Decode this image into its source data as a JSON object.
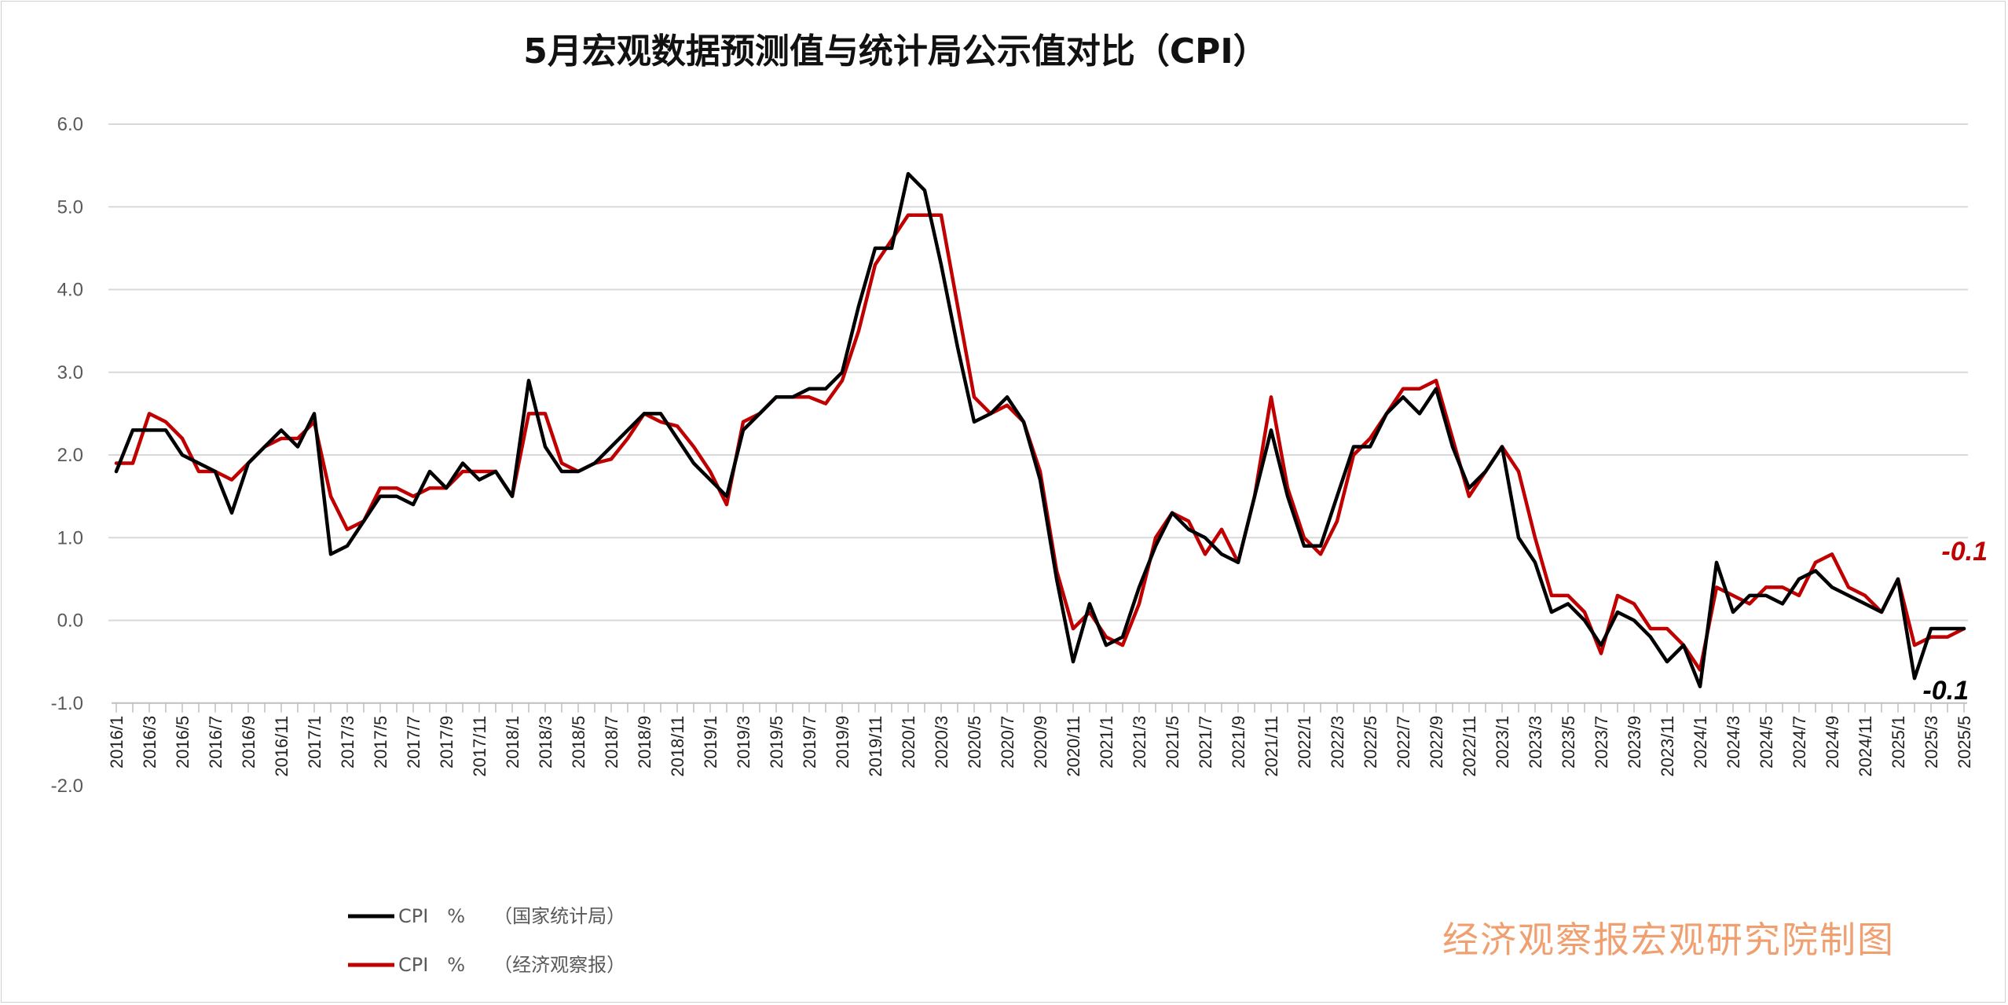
{
  "chart_data": {
    "type": "line",
    "title": "5月宏观数据预测值与统计局公示值对比（CPI）",
    "x": [
      "2016/1",
      "2016/2",
      "2016/3",
      "2016/4",
      "2016/5",
      "2016/6",
      "2016/7",
      "2016/8",
      "2016/9",
      "2016/10",
      "2016/11",
      "2016/12",
      "2017/1",
      "2017/2",
      "2017/3",
      "2017/4",
      "2017/5",
      "2017/6",
      "2017/7",
      "2017/8",
      "2017/9",
      "2017/10",
      "2017/11",
      "2017/12",
      "2018/1",
      "2018/2",
      "2018/3",
      "2018/4",
      "2018/5",
      "2018/6",
      "2018/7",
      "2018/8",
      "2018/9",
      "2018/10",
      "2018/11",
      "2018/12",
      "2019/1",
      "2019/2",
      "2019/3",
      "2019/4",
      "2019/5",
      "2019/6",
      "2019/7",
      "2019/8",
      "2019/9",
      "2019/10",
      "2019/11",
      "2019/12",
      "2020/1",
      "2020/2",
      "2020/3",
      "2020/4",
      "2020/5",
      "2020/6",
      "2020/7",
      "2020/8",
      "2020/9",
      "2020/10",
      "2020/11",
      "2020/12",
      "2021/1",
      "2021/2",
      "2021/3",
      "2021/4",
      "2021/5",
      "2021/6",
      "2021/7",
      "2021/8",
      "2021/9",
      "2021/10",
      "2021/11",
      "2021/12",
      "2022/1",
      "2022/2",
      "2022/3",
      "2022/4",
      "2022/5",
      "2022/6",
      "2022/7",
      "2022/8",
      "2022/9",
      "2022/10",
      "2022/11",
      "2022/12",
      "2023/1",
      "2023/2",
      "2023/3",
      "2023/4",
      "2023/5",
      "2023/6",
      "2023/7",
      "2023/8",
      "2023/9",
      "2023/10",
      "2023/11",
      "2023/12",
      "2024/1",
      "2024/2",
      "2024/3",
      "2024/4",
      "2024/5",
      "2024/6",
      "2024/7",
      "2024/8",
      "2024/9",
      "2024/10",
      "2024/11",
      "2024/12",
      "2025/1",
      "2025/2",
      "2025/3",
      "2025/4",
      "2025/5"
    ],
    "xticks_shown": [
      "2016/1",
      "2016/3",
      "2016/5",
      "2016/7",
      "2016/9",
      "2016/11",
      "2017/1",
      "2017/3",
      "2017/5",
      "2017/7",
      "2017/9",
      "2017/11",
      "2018/1",
      "2018/3",
      "2018/5",
      "2018/7",
      "2018/9",
      "2018/11",
      "2019/1",
      "2019/3",
      "2019/5",
      "2019/7",
      "2019/9",
      "2019/11",
      "2020/1",
      "2020/3",
      "2020/5",
      "2020/7",
      "2020/9",
      "2020/11",
      "2021/1",
      "2021/3",
      "2021/5",
      "2021/7",
      "2021/9",
      "2021/11",
      "2022/1",
      "2022/3",
      "2022/5",
      "2022/7",
      "2022/9",
      "2022/11",
      "2023/1",
      "2023/3",
      "2023/5",
      "2023/7",
      "2023/9",
      "2023/11",
      "2024/1",
      "2024/3",
      "2024/5",
      "2024/7",
      "2024/9",
      "2024/11",
      "2025/1",
      "2025/3",
      "2025/5"
    ],
    "series": [
      {
        "name": "CPI　%　　（国家统计局）",
        "color": "#000000",
        "values": [
          1.8,
          2.3,
          2.3,
          2.3,
          2.0,
          1.9,
          1.8,
          1.3,
          1.9,
          2.1,
          2.3,
          2.1,
          2.5,
          0.8,
          0.9,
          1.2,
          1.5,
          1.5,
          1.4,
          1.8,
          1.6,
          1.9,
          1.7,
          1.8,
          1.5,
          2.9,
          2.1,
          1.8,
          1.8,
          1.9,
          2.1,
          2.3,
          2.5,
          2.5,
          2.2,
          1.9,
          1.7,
          1.5,
          2.3,
          2.5,
          2.7,
          2.7,
          2.8,
          2.8,
          3.0,
          3.8,
          4.5,
          4.5,
          5.4,
          5.2,
          4.3,
          3.3,
          2.4,
          2.5,
          2.7,
          2.4,
          1.7,
          0.5,
          -0.5,
          0.2,
          -0.3,
          -0.2,
          0.4,
          0.9,
          1.3,
          1.1,
          1.0,
          0.8,
          0.7,
          1.5,
          2.3,
          1.5,
          0.9,
          0.9,
          1.5,
          2.1,
          2.1,
          2.5,
          2.7,
          2.5,
          2.8,
          2.1,
          1.6,
          1.8,
          2.1,
          1.0,
          0.7,
          0.1,
          0.2,
          0.0,
          -0.3,
          0.1,
          0.0,
          -0.2,
          -0.5,
          -0.3,
          -0.8,
          0.7,
          0.1,
          0.3,
          0.3,
          0.2,
          0.5,
          0.6,
          0.4,
          0.3,
          0.2,
          0.1,
          0.5,
          -0.7,
          -0.1,
          -0.1,
          -0.1
        ]
      },
      {
        "name": "CPI　%　　（经济观察报）",
        "color": "#c00000",
        "values": [
          1.9,
          1.9,
          2.5,
          2.4,
          2.2,
          1.8,
          1.8,
          1.7,
          1.9,
          2.1,
          2.2,
          2.2,
          2.4,
          1.5,
          1.1,
          1.2,
          1.6,
          1.6,
          1.5,
          1.6,
          1.6,
          1.8,
          1.8,
          1.8,
          1.5,
          2.5,
          2.5,
          1.9,
          1.8,
          1.9,
          1.95,
          2.2,
          2.5,
          2.4,
          2.35,
          2.1,
          1.8,
          1.4,
          2.4,
          2.5,
          2.7,
          2.7,
          2.7,
          2.62,
          2.9,
          3.5,
          4.3,
          4.6,
          4.9,
          4.9,
          4.9,
          3.8,
          2.7,
          2.5,
          2.6,
          2.4,
          1.8,
          0.6,
          -0.1,
          0.1,
          -0.2,
          -0.3,
          0.2,
          1.0,
          1.3,
          1.2,
          0.8,
          1.1,
          0.7,
          1.5,
          2.7,
          1.6,
          1.0,
          0.8,
          1.2,
          2.0,
          2.2,
          2.5,
          2.8,
          2.8,
          2.9,
          2.2,
          1.5,
          1.8,
          2.1,
          1.8,
          1.0,
          0.3,
          0.3,
          0.1,
          -0.4,
          0.3,
          0.2,
          -0.1,
          -0.1,
          -0.3,
          -0.6,
          0.4,
          0.3,
          0.2,
          0.4,
          0.4,
          0.3,
          0.7,
          0.8,
          0.4,
          0.3,
          0.1,
          0.5,
          -0.3,
          -0.2,
          -0.2,
          -0.1
        ]
      }
    ],
    "ylim": [
      -2.0,
      6.0
    ],
    "yticks": [
      "6.0",
      "5.0",
      "4.0",
      "3.0",
      "2.0",
      "1.0",
      "0.0",
      "-1.0",
      "-2.0"
    ],
    "xlabel": "",
    "ylabel": "",
    "grid": true,
    "legend_position": "bottom-left",
    "end_labels": [
      {
        "text": "-0.1",
        "series": 1,
        "color": "#c00000"
      },
      {
        "text": "-0.1",
        "series": 0,
        "color": "#000000"
      }
    ]
  },
  "legend": {
    "items": [
      {
        "label": "CPI　%　　（国家统计局）",
        "color": "#000000"
      },
      {
        "label": "CPI　%　　（经济观察报）",
        "color": "#c00000"
      }
    ]
  },
  "watermark": "经济观察报宏观研究院制图"
}
